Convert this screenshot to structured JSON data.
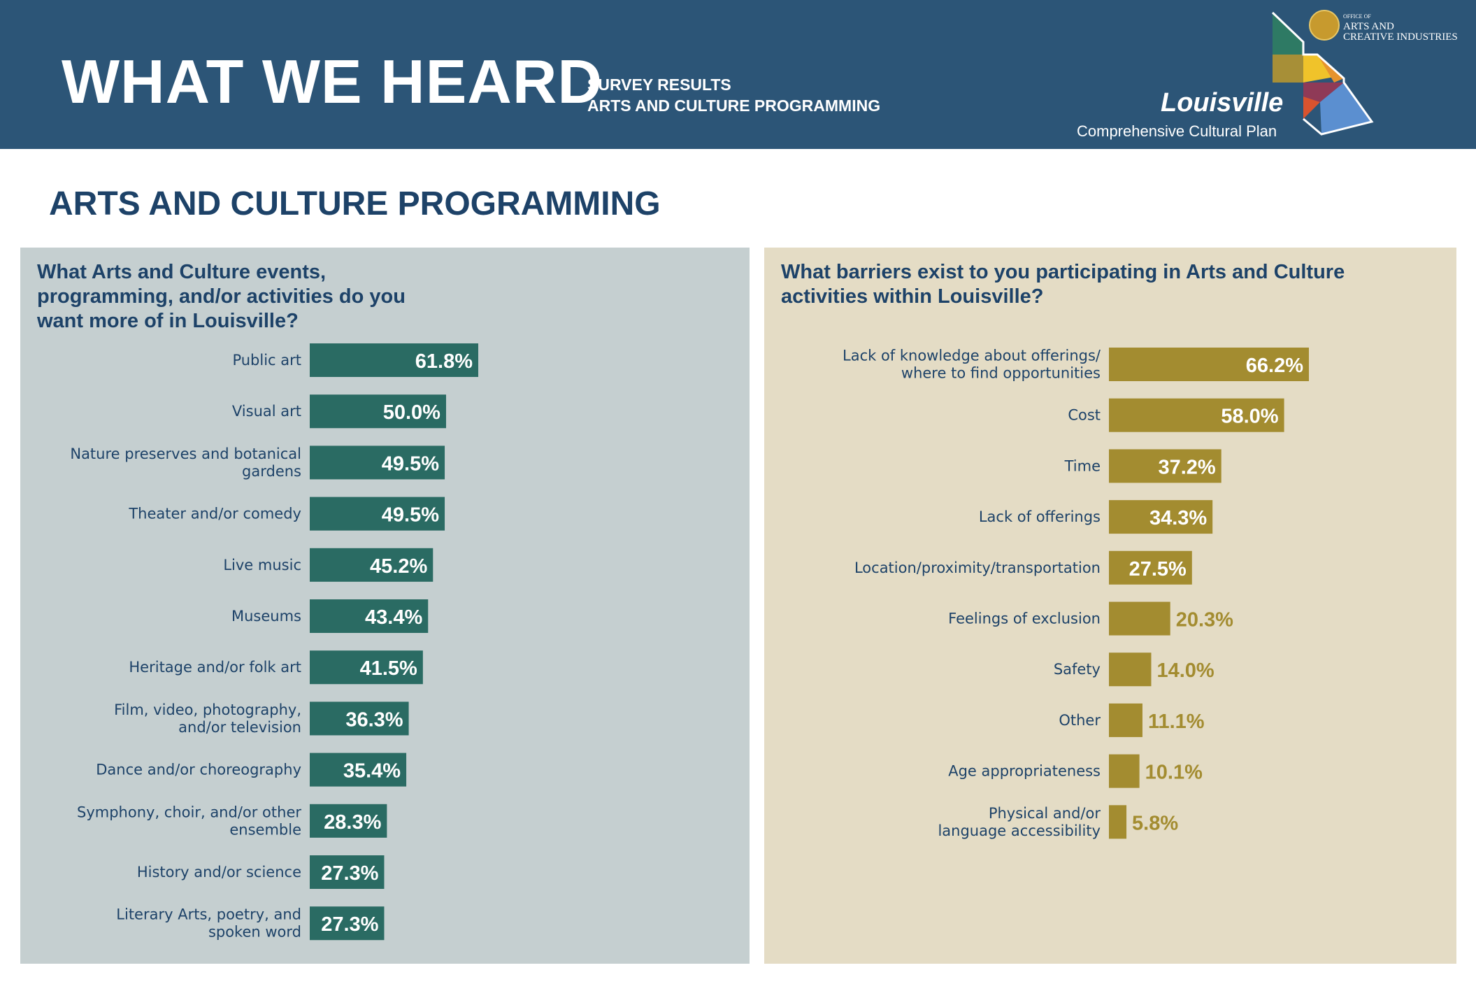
{
  "header": {
    "title": "WHAT WE HEARD",
    "subtitle_1": "SURVEY RESULTS",
    "subtitle_2": "ARTS AND CULTURE PROGRAMMING",
    "city": "Louisville",
    "plan": "Comprehensive Cultural Plan",
    "office_line1": "OFFICE OF",
    "office_line2": "ARTS AND",
    "office_line3": "CREATIVE INDUSTRIES"
  },
  "section_title": "ARTS AND CULTURE PROGRAMMING",
  "colors": {
    "header_bg": "#2c5577",
    "navy_text": "#1d4268",
    "left_panel_bg": "#c5cfd0",
    "right_panel_bg": "#e4dcc5",
    "green_bar": "#2a6b63",
    "gold_bar": "#a38c30"
  },
  "chart_data": [
    {
      "type": "bar",
      "orientation": "horizontal",
      "title": "What Arts and Culture events, programming, and/or activities do you want more of in Louisville?",
      "unit": "%",
      "categories": [
        "Public art",
        "Visual art",
        "Nature preserves and botanical gardens",
        "Theater and/or comedy",
        "Live music",
        "Museums",
        "Heritage and/or folk art",
        "Film, video, photography, and/or television",
        "Dance and/or choreography",
        "Symphony, choir, and/or other ensemble",
        "History and/or science",
        "Literary Arts, poetry, and spoken word"
      ],
      "category_lines": [
        [
          "Public art"
        ],
        [
          "Visual art"
        ],
        [
          "Nature preserves and botanical",
          "gardens"
        ],
        [
          "Theater and/or comedy"
        ],
        [
          "Live music"
        ],
        [
          "Museums"
        ],
        [
          "Heritage and/or folk art"
        ],
        [
          "Film, video, photography,",
          "and/or television"
        ],
        [
          "Dance and/or choreography"
        ],
        [
          "Symphony, choir, and/or other",
          "ensemble"
        ],
        [
          "History and/or science"
        ],
        [
          "Literary Arts, poetry, and",
          "spoken word"
        ]
      ],
      "values": [
        61.8,
        50.0,
        49.5,
        49.5,
        45.2,
        43.4,
        41.5,
        36.3,
        35.4,
        28.3,
        27.3,
        27.3
      ],
      "value_labels": [
        "61.8%",
        "50.0%",
        "49.5%",
        "49.5%",
        "45.2%",
        "43.4%",
        "41.5%",
        "36.3%",
        "35.4%",
        "28.3%",
        "27.3%",
        "27.3%"
      ],
      "label_inside": [
        true,
        true,
        true,
        true,
        true,
        true,
        true,
        true,
        true,
        true,
        true,
        true
      ],
      "xlim": [
        0,
        100
      ]
    },
    {
      "type": "bar",
      "orientation": "horizontal",
      "title": "What barriers exist to you participating in Arts and Culture activities within Louisville?",
      "unit": "%",
      "categories": [
        "Lack of knowledge about offerings/ where to find opportunities",
        "Cost",
        "Time",
        "Lack of offerings",
        "Location/proximity/transportation",
        "Feelings of exclusion",
        "Safety",
        "Other",
        "Age appropriateness",
        "Physical and/or language accessibility"
      ],
      "category_lines": [
        [
          "Lack of knowledge about offerings/",
          "where to find opportunities"
        ],
        [
          "Cost"
        ],
        [
          "Time"
        ],
        [
          "Lack of offerings"
        ],
        [
          "Location/proximity/transportation"
        ],
        [
          "Feelings of exclusion"
        ],
        [
          "Safety"
        ],
        [
          "Other"
        ],
        [
          "Age appropriateness"
        ],
        [
          "Physical and/or",
          "language accessibility"
        ]
      ],
      "values": [
        66.2,
        58.0,
        37.2,
        34.3,
        27.5,
        20.3,
        14.0,
        11.1,
        10.1,
        5.8
      ],
      "value_labels": [
        "66.2%",
        "58.0%",
        "37.2%",
        "34.3%",
        "27.5%",
        "20.3%",
        "14.0%",
        "11.1%",
        "10.1%",
        "5.8%"
      ],
      "label_inside": [
        true,
        true,
        true,
        true,
        true,
        false,
        false,
        false,
        false,
        false
      ],
      "xlim": [
        0,
        100
      ]
    }
  ]
}
